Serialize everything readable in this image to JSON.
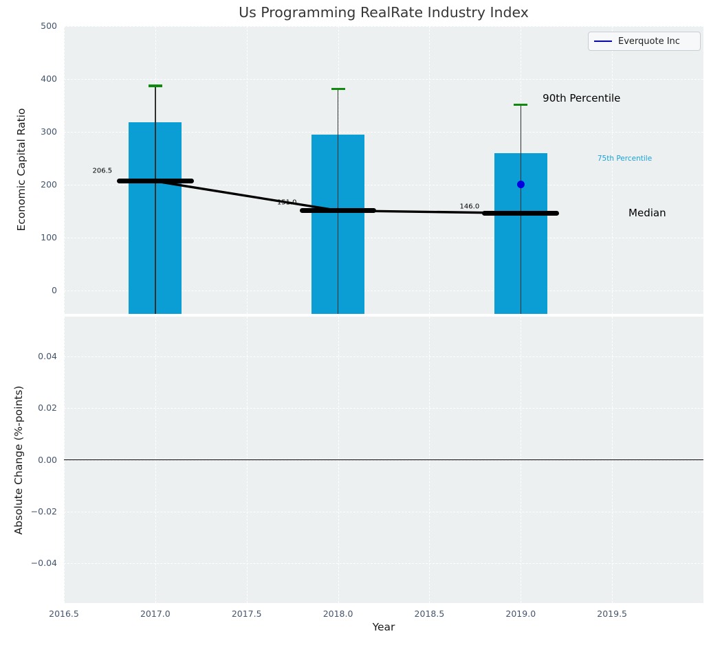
{
  "title": "Us Programming RealRate Industry Index",
  "legend": {
    "label": "Everquote Inc",
    "line_color": "#0000ee"
  },
  "colors": {
    "axes_background": "#ecf0f1",
    "grid": "#ffffff",
    "bar": "#0a9ed4",
    "whisker": "#2f2f2f",
    "percentile90_cap": "#0f8a0f",
    "median": "#000000",
    "company_point": "#0000e0",
    "tick_label": "#44546b",
    "title_color": "#363636",
    "annotation_75th": "#1ba3d6"
  },
  "chart_data": [
    {
      "type": "bar",
      "title": "Us Programming RealRate Industry Index",
      "ylabel": "Economic Capital Ratio",
      "xlim": [
        2016.5,
        2020.0
      ],
      "ylim": [
        -44.5,
        500
      ],
      "grid": true,
      "legend_position": "upper right",
      "xgrid_lines": [
        2016.5,
        2017.0,
        2017.5,
        2018.0,
        2018.5,
        2019.0,
        2019.5
      ],
      "yticks": [
        {
          "v": 0,
          "label": "0"
        },
        {
          "v": 100,
          "label": "100"
        },
        {
          "v": 200,
          "label": "200"
        },
        {
          "v": 300,
          "label": "300"
        },
        {
          "v": 400,
          "label": "400"
        },
        {
          "v": 500,
          "label": "500"
        }
      ],
      "categories": [
        2017,
        2018,
        2019
      ],
      "bar_width_years": 0.29,
      "bars_75th_percentile_tops": [
        318,
        295,
        260
      ],
      "whiskers_90th_percentile": [
        387,
        381,
        351
      ],
      "medians": [
        206.5,
        151.0,
        146.0
      ],
      "median_line_width_years": 0.42,
      "median_labels": [
        {
          "text": "206.5",
          "x": 2016.71,
          "y": 226
        },
        {
          "text": "151.0",
          "x": 2017.72,
          "y": 166
        },
        {
          "text": "146.0",
          "x": 2018.72,
          "y": 158
        }
      ],
      "company_point": {
        "name": "Everquote Inc",
        "x": 2019,
        "y": 200
      },
      "annotations": [
        {
          "text": "90th Percentile",
          "x": 2019.12,
          "y": 363,
          "color": "#000000",
          "size": 15
        },
        {
          "text": "75th Percentile",
          "x": 2019.42,
          "y": 249,
          "color": "#1ba3d6",
          "size": 10.5
        },
        {
          "text": "Median",
          "x": 2019.59,
          "y": 147,
          "color": "#000000",
          "size": 15
        }
      ]
    },
    {
      "type": "line",
      "ylabel": "Absolute Change (%-points)",
      "xlabel": "Year",
      "xlim": [
        2016.5,
        2020.0
      ],
      "ylim": [
        -0.0553,
        0.0553
      ],
      "grid": true,
      "zero_line": 0.0,
      "series": [],
      "xgrid_lines": [
        2016.5,
        2017.0,
        2017.5,
        2018.0,
        2018.5,
        2019.0,
        2019.5
      ],
      "yticks": [
        {
          "v": 0.04,
          "label": "0.04"
        },
        {
          "v": 0.02,
          "label": "0.02"
        },
        {
          "v": 0.0,
          "label": "0.00"
        },
        {
          "v": -0.02,
          "label": "−0.02"
        },
        {
          "v": -0.04,
          "label": "−0.04"
        }
      ],
      "xticks": [
        {
          "v": 2016.5,
          "label": "2016.5"
        },
        {
          "v": 2017.0,
          "label": "2017.0"
        },
        {
          "v": 2017.5,
          "label": "2017.5"
        },
        {
          "v": 2018.0,
          "label": "2018.0"
        },
        {
          "v": 2018.5,
          "label": "2018.5"
        },
        {
          "v": 2019.0,
          "label": "2019.0"
        },
        {
          "v": 2019.5,
          "label": "2019.5"
        }
      ]
    }
  ]
}
